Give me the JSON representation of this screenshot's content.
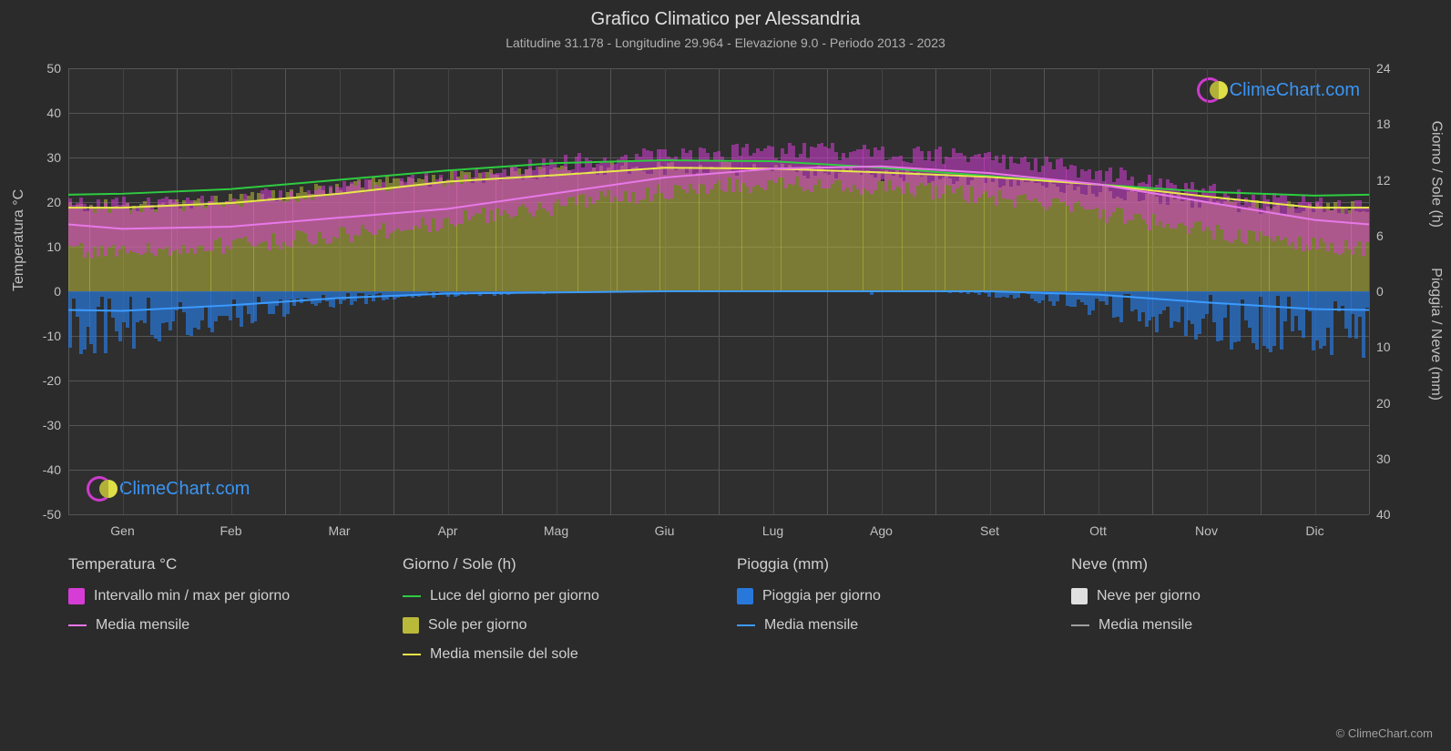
{
  "title": "Grafico Climatico per Alessandria",
  "subtitle": "Latitudine 31.178 - Longitudine 29.964 - Elevazione 9.0 - Periodo 2013 - 2023",
  "background_color": "#2b2b2b",
  "plot_background_color": "#2f2f2f",
  "grid_color": "#555555",
  "y_left": {
    "label": "Temperatura °C",
    "min": -50,
    "max": 50,
    "step": 10,
    "ticks": [
      50,
      40,
      30,
      20,
      10,
      0,
      -10,
      -20,
      -30,
      -40,
      -50
    ]
  },
  "y_right_top": {
    "label": "Giorno / Sole (h)",
    "min": 0,
    "max": 24,
    "step": 6,
    "ticks": [
      24,
      18,
      12,
      6,
      0
    ]
  },
  "y_right_bottom": {
    "label": "Pioggia / Neve (mm)",
    "min": 0,
    "max": 40,
    "step": 10,
    "ticks": [
      0,
      10,
      20,
      30,
      40
    ]
  },
  "x_axis": {
    "months": [
      "Gen",
      "Feb",
      "Mar",
      "Apr",
      "Mag",
      "Giu",
      "Lug",
      "Ago",
      "Set",
      "Ott",
      "Nov",
      "Dic"
    ]
  },
  "colors": {
    "temp_range": "#d63cd6",
    "temp_mean_line": "#e878e8",
    "daylight_line": "#2ecc40",
    "sun_fill": "#b9b93a",
    "sun_mean_line": "#e8e84a",
    "rain_fill": "#2878dc",
    "rain_mean_line": "#3b9bff",
    "snow_fill": "#e0e0e0",
    "snow_mean_line": "#a0a0a0"
  },
  "monthly": {
    "temp_mean": [
      14.0,
      14.5,
      16.5,
      18.5,
      22.0,
      25.5,
      27.5,
      28.0,
      26.5,
      24.0,
      20.0,
      16.0
    ],
    "temp_min": [
      9.0,
      9.5,
      11.5,
      14.0,
      17.5,
      21.0,
      23.5,
      24.0,
      22.5,
      19.5,
      15.5,
      11.5
    ],
    "temp_max": [
      19.0,
      19.5,
      21.5,
      24.0,
      27.0,
      30.0,
      31.0,
      31.5,
      30.5,
      28.5,
      24.5,
      20.5
    ],
    "daylight_h": [
      10.5,
      11.0,
      12.0,
      13.0,
      13.8,
      14.1,
      14.0,
      13.3,
      12.4,
      11.5,
      10.7,
      10.3
    ],
    "sun_h": [
      9.0,
      9.5,
      10.5,
      11.8,
      12.5,
      13.3,
      13.2,
      12.8,
      12.3,
      11.5,
      10.2,
      9.0
    ],
    "rain_mm": [
      3.5,
      2.5,
      1.2,
      0.4,
      0.2,
      0.0,
      0.0,
      0.0,
      0.0,
      0.6,
      2.0,
      3.2
    ],
    "snow_mm": [
      0,
      0,
      0,
      0,
      0,
      0,
      0,
      0,
      0,
      0,
      0,
      0
    ]
  },
  "daily_noise": {
    "temp_variance": 4.0,
    "sun_variance": 1.5,
    "rain_variance_factor": 3.5
  },
  "legend": {
    "cols": [
      {
        "header": "Temperatura °C",
        "items": [
          {
            "type": "box",
            "colorKey": "temp_range",
            "label": "Intervallo min / max per giorno"
          },
          {
            "type": "line",
            "colorKey": "temp_mean_line",
            "label": "Media mensile"
          }
        ]
      },
      {
        "header": "Giorno / Sole (h)",
        "items": [
          {
            "type": "line",
            "colorKey": "daylight_line",
            "label": "Luce del giorno per giorno"
          },
          {
            "type": "box",
            "colorKey": "sun_fill",
            "label": "Sole per giorno"
          },
          {
            "type": "line",
            "colorKey": "sun_mean_line",
            "label": "Media mensile del sole"
          }
        ]
      },
      {
        "header": "Pioggia (mm)",
        "items": [
          {
            "type": "box",
            "colorKey": "rain_fill",
            "label": "Pioggia per giorno"
          },
          {
            "type": "line",
            "colorKey": "rain_mean_line",
            "label": "Media mensile"
          }
        ]
      },
      {
        "header": "Neve (mm)",
        "items": [
          {
            "type": "box",
            "colorKey": "snow_fill",
            "label": "Neve per giorno"
          },
          {
            "type": "line",
            "colorKey": "snow_mean_line",
            "label": "Media mensile"
          }
        ]
      }
    ]
  },
  "watermark_text": "ClimeChart.com",
  "copyright": "© ClimeChart.com"
}
